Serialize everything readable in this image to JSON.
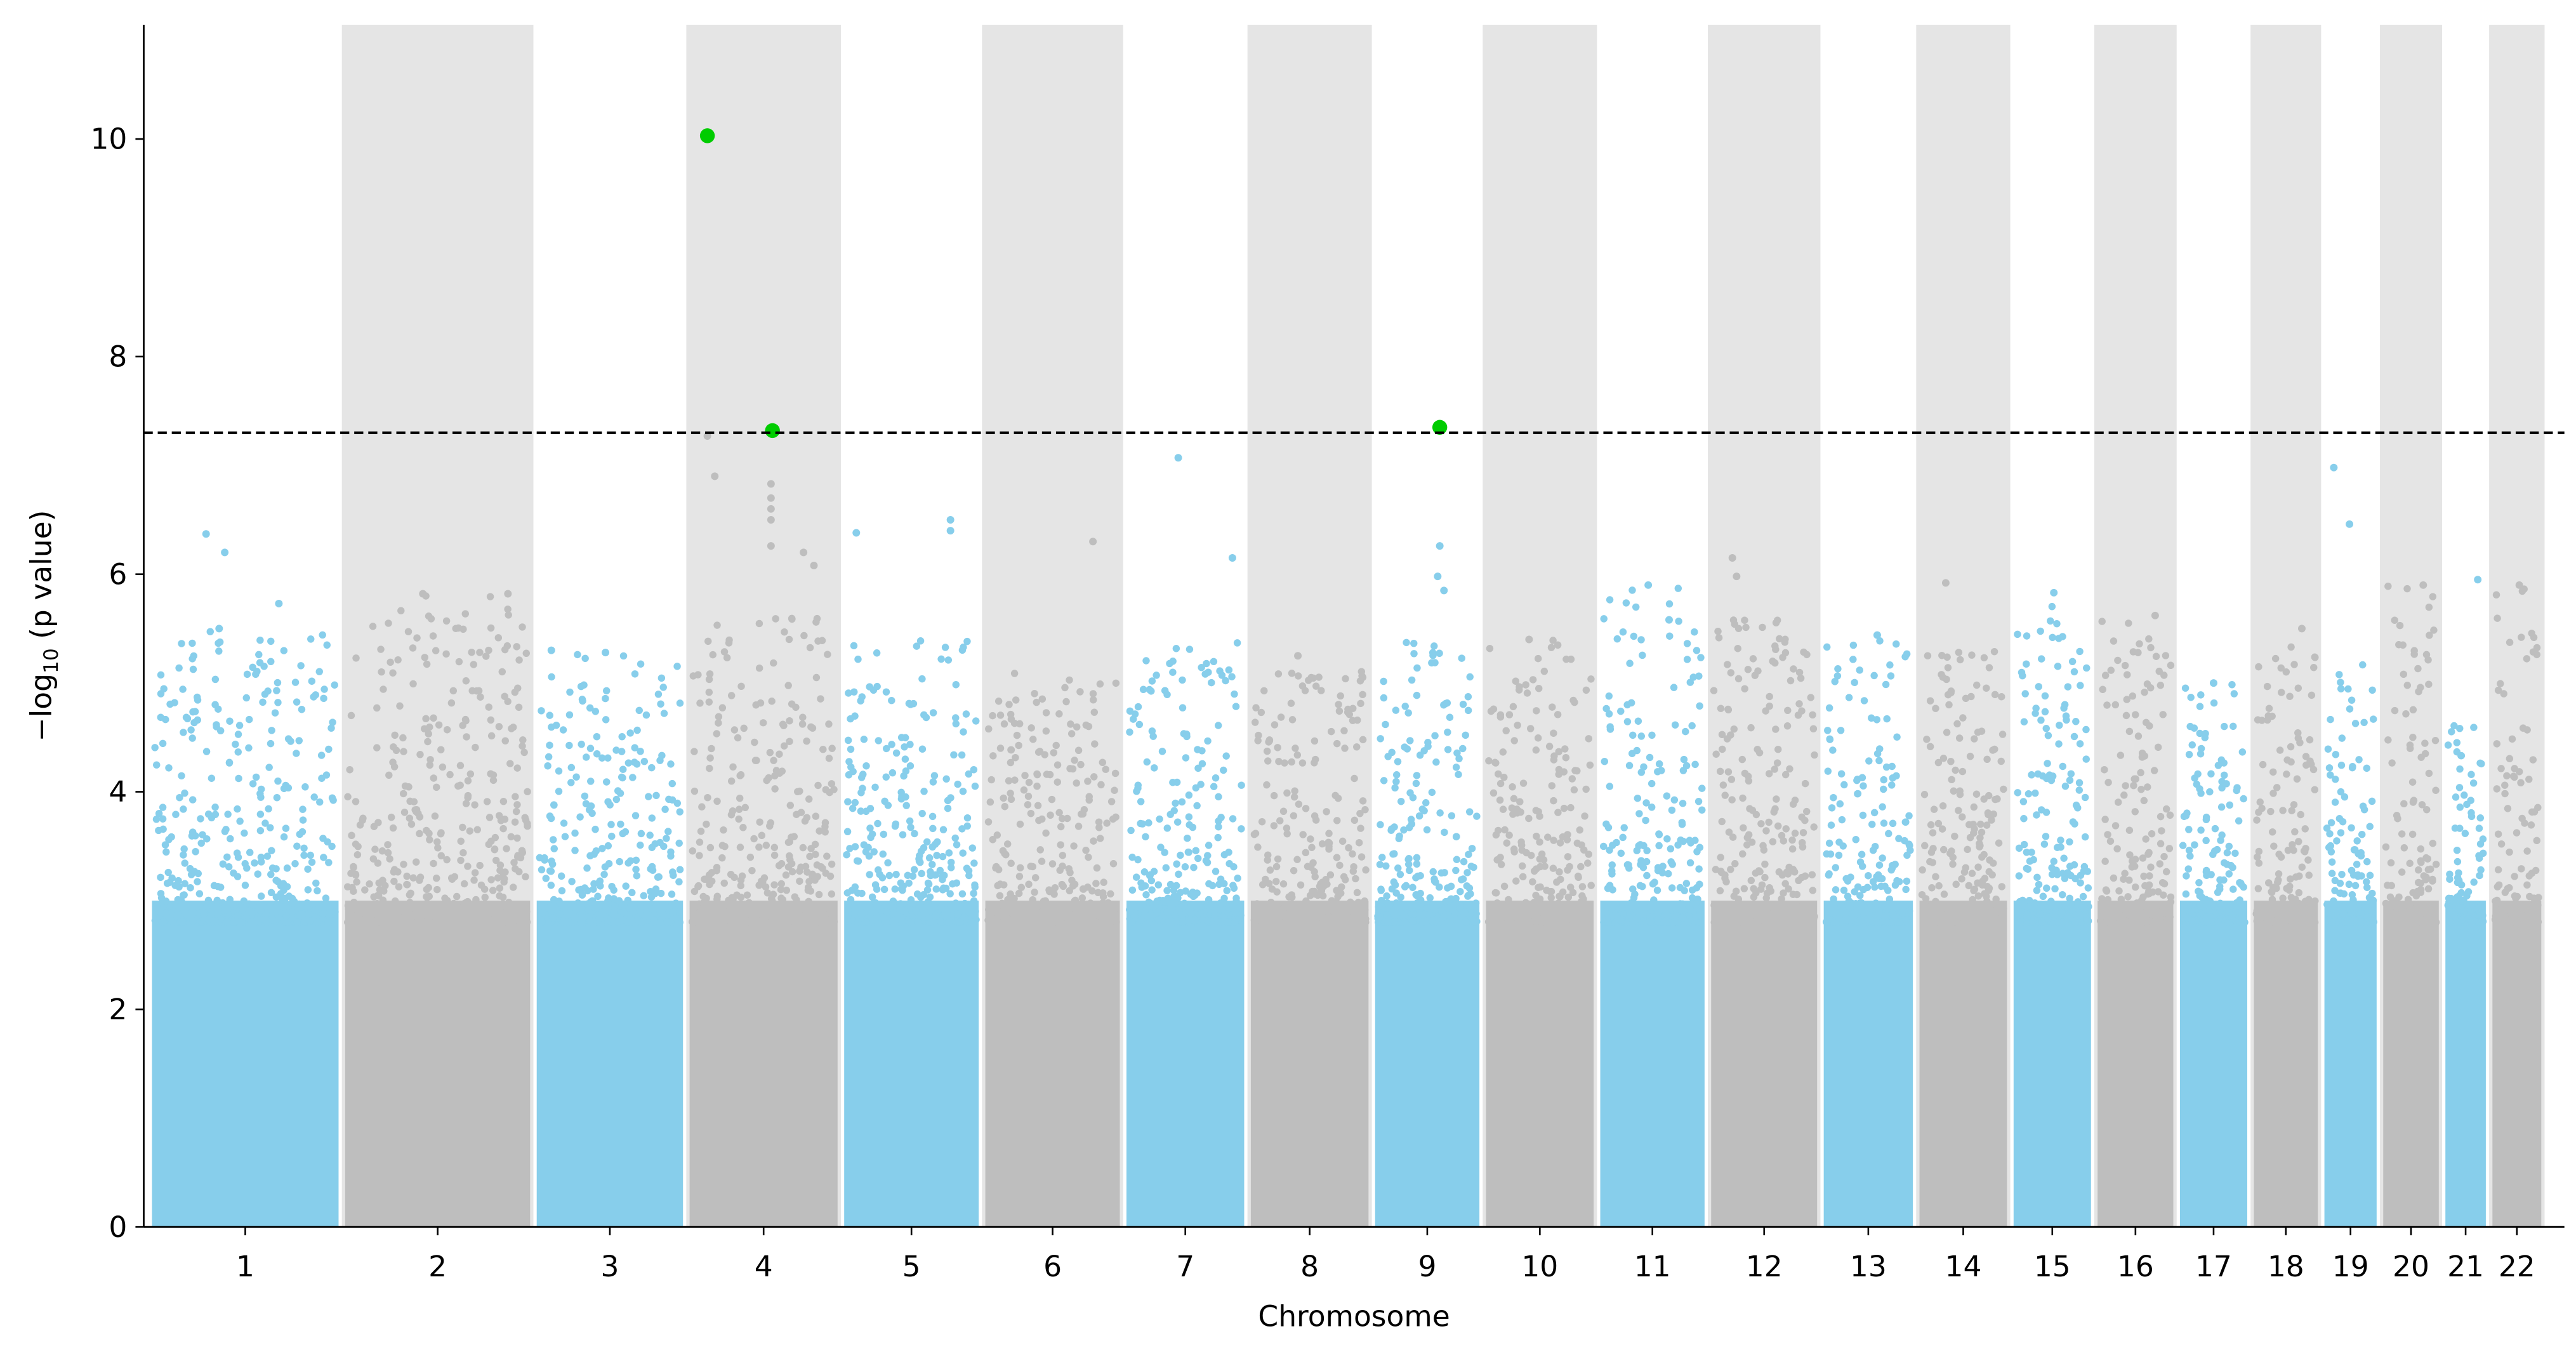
{
  "chart_data": {
    "type": "scatter",
    "subtype": "manhattan",
    "title": "",
    "xlabel": "Chromosome",
    "ylabel": {
      "prefix": "−log",
      "sub": "10",
      "suffix": " (p value)"
    },
    "ylim": [
      0,
      11.05
    ],
    "yticks": [
      0,
      2,
      4,
      6,
      8,
      10
    ],
    "threshold": 7.3,
    "threshold_style": "dashed",
    "colors": {
      "odd": "#87CEEB",
      "even": "#BEBEBE",
      "band": "#E5E5E5",
      "significant": "#00CC00",
      "threshold": "#000000"
    },
    "chromosomes": [
      {
        "label": "1",
        "span": 115
      },
      {
        "label": "2",
        "span": 114
      },
      {
        "label": "3",
        "span": 91
      },
      {
        "label": "4",
        "span": 92
      },
      {
        "label": "5",
        "span": 84
      },
      {
        "label": "6",
        "span": 84
      },
      {
        "label": "7",
        "span": 74
      },
      {
        "label": "8",
        "span": 74
      },
      {
        "label": "9",
        "span": 66
      },
      {
        "label": "10",
        "span": 68
      },
      {
        "label": "11",
        "span": 66
      },
      {
        "label": "12",
        "span": 67
      },
      {
        "label": "13",
        "span": 57
      },
      {
        "label": "14",
        "span": 56
      },
      {
        "label": "15",
        "span": 50
      },
      {
        "label": "16",
        "span": 49
      },
      {
        "label": "17",
        "span": 44
      },
      {
        "label": "18",
        "span": 42
      },
      {
        "label": "19",
        "span": 35
      },
      {
        "label": "20",
        "span": 37
      },
      {
        "label": "21",
        "span": 28
      },
      {
        "label": "22",
        "span": 33
      }
    ],
    "baseline_level": 3.0,
    "chromosome_max_background": [
      5.5,
      5.8,
      5.3,
      5.6,
      5.4,
      5.1,
      5.4,
      5.2,
      5.4,
      5.4,
      5.9,
      5.6,
      5.4,
      5.3,
      5.8,
      5.6,
      5.0,
      5.5,
      5.2,
      5.9,
      4.7,
      5.9
    ],
    "peaks": [
      {
        "chr": "1",
        "pos": 0.29,
        "value": 6.37
      },
      {
        "chr": "1",
        "pos": 0.39,
        "value": 6.2
      },
      {
        "chr": "1",
        "pos": 0.36,
        "value": 5.5
      },
      {
        "chr": "1",
        "pos": 0.68,
        "value": 5.73
      },
      {
        "chr": "2",
        "pos": 0.42,
        "value": 5.82
      },
      {
        "chr": "2",
        "pos": 0.88,
        "value": 5.82
      },
      {
        "chr": "3",
        "pos": 0.1,
        "value": 5.3
      },
      {
        "chr": "3",
        "pos": 0.47,
        "value": 5.28
      },
      {
        "chr": "4",
        "pos": 0.12,
        "value": 10.03
      },
      {
        "chr": "4",
        "pos": 0.56,
        "value": 7.32
      },
      {
        "chr": "4",
        "pos": 0.12,
        "value": 7.27
      },
      {
        "chr": "4",
        "pos": 0.17,
        "value": 6.9
      },
      {
        "chr": "4",
        "pos": 0.55,
        "value": 6.83
      },
      {
        "chr": "4",
        "pos": 0.55,
        "value": 6.7
      },
      {
        "chr": "4",
        "pos": 0.55,
        "value": 6.6
      },
      {
        "chr": "4",
        "pos": 0.55,
        "value": 6.5
      },
      {
        "chr": "4",
        "pos": 0.55,
        "value": 6.26
      },
      {
        "chr": "4",
        "pos": 0.77,
        "value": 6.2
      },
      {
        "chr": "4",
        "pos": 0.84,
        "value": 6.08
      },
      {
        "chr": "5",
        "pos": 0.09,
        "value": 6.38
      },
      {
        "chr": "5",
        "pos": 0.79,
        "value": 6.5
      },
      {
        "chr": "5",
        "pos": 0.79,
        "value": 6.4
      },
      {
        "chr": "6",
        "pos": 0.8,
        "value": 6.3
      },
      {
        "chr": "7",
        "pos": 0.44,
        "value": 7.07
      },
      {
        "chr": "7",
        "pos": 0.9,
        "value": 6.15
      },
      {
        "chr": "8",
        "pos": 0.4,
        "value": 5.25
      },
      {
        "chr": "9",
        "pos": 0.62,
        "value": 7.35
      },
      {
        "chr": "9",
        "pos": 0.62,
        "value": 6.26
      },
      {
        "chr": "9",
        "pos": 0.6,
        "value": 5.98
      },
      {
        "chr": "9",
        "pos": 0.66,
        "value": 5.85
      },
      {
        "chr": "10",
        "pos": 0.4,
        "value": 5.4
      },
      {
        "chr": "11",
        "pos": 0.46,
        "value": 5.9
      },
      {
        "chr": "11",
        "pos": 0.66,
        "value": 5.58
      },
      {
        "chr": "12",
        "pos": 0.2,
        "value": 6.15
      },
      {
        "chr": "12",
        "pos": 0.24,
        "value": 5.98
      },
      {
        "chr": "13",
        "pos": 0.6,
        "value": 5.44
      },
      {
        "chr": "14",
        "pos": 0.3,
        "value": 5.92
      },
      {
        "chr": "15",
        "pos": 0.52,
        "value": 5.83
      },
      {
        "chr": "16",
        "pos": 0.76,
        "value": 5.62
      },
      {
        "chr": "17",
        "pos": 0.5,
        "value": 5.0
      },
      {
        "chr": "18",
        "pos": 0.75,
        "value": 5.5
      },
      {
        "chr": "19",
        "pos": 0.18,
        "value": 6.98
      },
      {
        "chr": "19",
        "pos": 0.48,
        "value": 6.46
      },
      {
        "chr": "20",
        "pos": 0.72,
        "value": 5.9
      },
      {
        "chr": "21",
        "pos": 0.8,
        "value": 5.95
      },
      {
        "chr": "22",
        "pos": 0.55,
        "value": 5.9
      }
    ]
  }
}
